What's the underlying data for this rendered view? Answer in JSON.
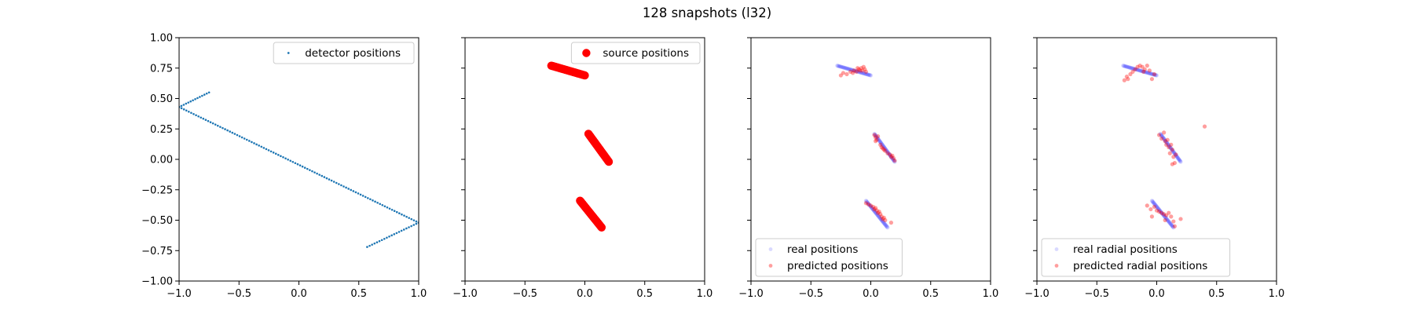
{
  "figure": {
    "title": "128 snapshots (l32)"
  },
  "colors": {
    "detector": "#1f77b4",
    "source": "#ff0000",
    "real": "#0000ff",
    "predicted": "#ff0000"
  },
  "chart_data": [
    {
      "type": "scatter",
      "xlim": [
        -1.0,
        1.0
      ],
      "ylim": [
        -1.0,
        1.0
      ],
      "xticks": [
        "−1.0",
        "−0.5",
        "0.0",
        "0.5",
        "1.0"
      ],
      "yticks": [
        "1.00",
        "0.75",
        "0.50",
        "0.25",
        "0.00",
        "−0.25",
        "−0.50",
        "−0.75",
        "−1.00"
      ],
      "grid": false,
      "legend_position": "top-right",
      "series": [
        {
          "name": "detector positions",
          "color": "#1f77b4",
          "segments": [
            {
              "from": [
                -0.75,
                0.55
              ],
              "to": [
                -1.0,
                0.43
              ],
              "count": 14
            },
            {
              "from": [
                -1.0,
                0.43
              ],
              "to": [
                1.0,
                -0.52
              ],
              "count": 100
            },
            {
              "from": [
                1.0,
                -0.52
              ],
              "to": [
                0.57,
                -0.72
              ],
              "count": 22
            }
          ]
        }
      ]
    },
    {
      "type": "scatter",
      "xlim": [
        -1.0,
        1.0
      ],
      "ylim": [
        -1.0,
        1.0
      ],
      "xticks": [
        "−1.0",
        "−0.5",
        "0.0",
        "0.5",
        "1.0"
      ],
      "grid": false,
      "legend_position": "top-right",
      "series": [
        {
          "name": "source positions",
          "color": "#ff0000",
          "segments": [
            {
              "from": [
                -0.28,
                0.77
              ],
              "to": [
                0.0,
                0.69
              ],
              "count": 43
            },
            {
              "from": [
                0.03,
                0.21
              ],
              "to": [
                0.2,
                -0.02
              ],
              "count": 43
            },
            {
              "from": [
                -0.04,
                -0.34
              ],
              "to": [
                0.14,
                -0.56
              ],
              "count": 42
            }
          ]
        }
      ]
    },
    {
      "type": "scatter",
      "xlim": [
        -1.0,
        1.0
      ],
      "ylim": [
        -1.0,
        1.0
      ],
      "xticks": [
        "−1.0",
        "−0.5",
        "0.0",
        "0.5",
        "1.0"
      ],
      "grid": false,
      "legend_position": "bottom-left",
      "series": [
        {
          "name": "real positions",
          "color": "#0000ff",
          "segments": [
            {
              "from": [
                -0.28,
                0.77
              ],
              "to": [
                0.0,
                0.69
              ],
              "count": 43
            },
            {
              "from": [
                0.03,
                0.21
              ],
              "to": [
                0.2,
                -0.02
              ],
              "count": 43
            },
            {
              "from": [
                -0.04,
                -0.34
              ],
              "to": [
                0.14,
                -0.56
              ],
              "count": 42
            }
          ]
        },
        {
          "name": "predicted positions",
          "color": "#ff0000",
          "points": [
            [
              -0.25,
              0.69
            ],
            [
              -0.23,
              0.71
            ],
            [
              -0.2,
              0.7
            ],
            [
              -0.17,
              0.72
            ],
            [
              -0.14,
              0.73
            ],
            [
              -0.12,
              0.72
            ],
            [
              -0.1,
              0.74
            ],
            [
              -0.08,
              0.75
            ],
            [
              -0.07,
              0.73
            ],
            [
              -0.05,
              0.74
            ],
            [
              -0.04,
              0.72
            ],
            [
              -0.06,
              0.76
            ],
            [
              -0.09,
              0.73
            ],
            [
              -0.15,
              0.71
            ],
            [
              -0.11,
              0.75
            ],
            [
              0.03,
              0.2
            ],
            [
              0.04,
              0.18
            ],
            [
              0.05,
              0.16
            ],
            [
              0.04,
              0.15
            ],
            [
              0.06,
              0.19
            ],
            [
              0.08,
              0.12
            ],
            [
              0.09,
              0.1
            ],
            [
              0.11,
              0.08
            ],
            [
              0.12,
              0.07
            ],
            [
              0.14,
              0.05
            ],
            [
              0.16,
              0.04
            ],
            [
              0.17,
              0.02
            ],
            [
              0.19,
              0.01
            ],
            [
              0.2,
              -0.01
            ],
            [
              0.18,
              0.03
            ],
            [
              0.1,
              0.09
            ],
            [
              -0.04,
              -0.36
            ],
            [
              -0.02,
              -0.37
            ],
            [
              0.0,
              -0.38
            ],
            [
              0.02,
              -0.39
            ],
            [
              0.03,
              -0.41
            ],
            [
              0.05,
              -0.42
            ],
            [
              0.06,
              -0.44
            ],
            [
              0.08,
              -0.45
            ],
            [
              0.09,
              -0.47
            ],
            [
              0.1,
              -0.49
            ],
            [
              0.12,
              -0.5
            ],
            [
              0.17,
              -0.52
            ],
            [
              0.04,
              -0.4
            ],
            [
              0.07,
              -0.43
            ],
            [
              0.11,
              -0.48
            ]
          ]
        }
      ]
    },
    {
      "type": "scatter",
      "xlim": [
        -1.0,
        1.0
      ],
      "ylim": [
        -1.0,
        1.0
      ],
      "xticks": [
        "−1.0",
        "−0.5",
        "0.0",
        "0.5",
        "1.0"
      ],
      "grid": false,
      "legend_position": "bottom-left",
      "series": [
        {
          "name": "real radial positions",
          "color": "#0000ff",
          "segments": [
            {
              "from": [
                -0.28,
                0.77
              ],
              "to": [
                0.0,
                0.69
              ],
              "count": 43
            },
            {
              "from": [
                0.03,
                0.21
              ],
              "to": [
                0.2,
                -0.02
              ],
              "count": 43
            },
            {
              "from": [
                -0.04,
                -0.34
              ],
              "to": [
                0.14,
                -0.56
              ],
              "count": 42
            }
          ]
        },
        {
          "name": "predicted radial positions",
          "color": "#ff0000",
          "points": [
            [
              -0.27,
              0.65
            ],
            [
              -0.25,
              0.68
            ],
            [
              -0.22,
              0.7
            ],
            [
              -0.2,
              0.72
            ],
            [
              -0.18,
              0.74
            ],
            [
              -0.16,
              0.76
            ],
            [
              -0.14,
              0.77
            ],
            [
              -0.12,
              0.76
            ],
            [
              -0.1,
              0.74
            ],
            [
              -0.08,
              0.77
            ],
            [
              -0.06,
              0.73
            ],
            [
              -0.04,
              0.66
            ],
            [
              -0.02,
              0.7
            ],
            [
              -0.24,
              0.66
            ],
            [
              -0.11,
              0.72
            ],
            [
              0.02,
              0.2
            ],
            [
              0.04,
              0.17
            ],
            [
              0.06,
              0.22
            ],
            [
              0.07,
              0.15
            ],
            [
              0.08,
              0.12
            ],
            [
              0.1,
              0.1
            ],
            [
              0.12,
              0.12
            ],
            [
              0.11,
              0.05
            ],
            [
              0.13,
              0.08
            ],
            [
              0.14,
              0.02
            ],
            [
              0.15,
              -0.03
            ],
            [
              0.13,
              -0.04
            ],
            [
              0.16,
              0.04
            ],
            [
              0.09,
              0.16
            ],
            [
              0.4,
              0.27
            ],
            [
              -0.08,
              -0.38
            ],
            [
              -0.05,
              -0.41
            ],
            [
              -0.02,
              -0.39
            ],
            [
              0.0,
              -0.42
            ],
            [
              0.02,
              -0.43
            ],
            [
              0.04,
              -0.44
            ],
            [
              0.06,
              -0.45
            ],
            [
              0.08,
              -0.46
            ],
            [
              0.1,
              -0.44
            ],
            [
              0.12,
              -0.47
            ],
            [
              0.14,
              -0.51
            ],
            [
              0.2,
              -0.49
            ],
            [
              -0.04,
              -0.47
            ],
            [
              0.07,
              -0.5
            ],
            [
              0.15,
              -0.55
            ]
          ]
        }
      ]
    }
  ]
}
